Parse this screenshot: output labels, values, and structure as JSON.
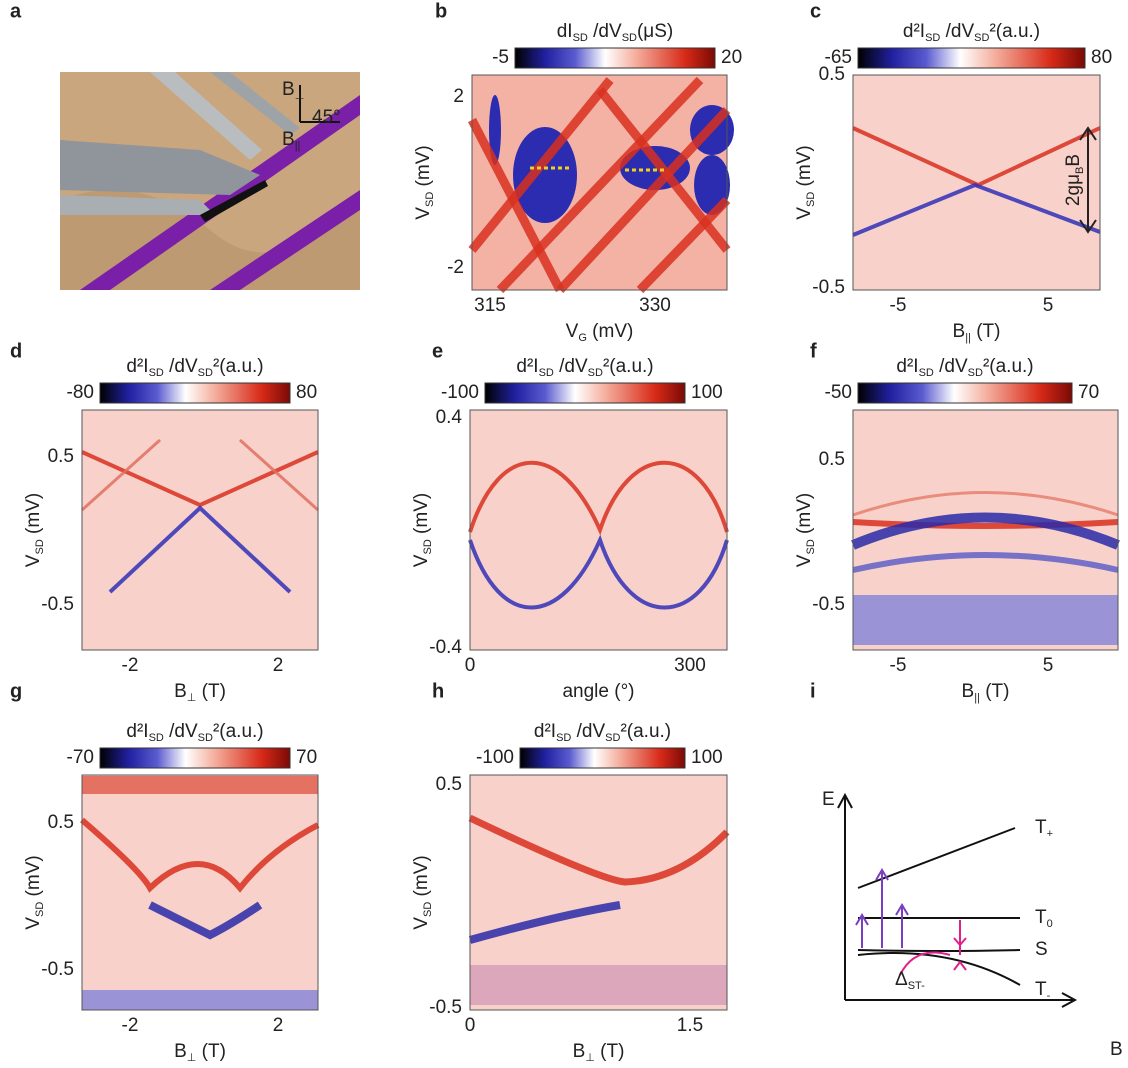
{
  "panels": [
    {
      "letter": "a",
      "labels": [
        [
          "B",
          "⊥"
        ],
        [
          "B",
          "||"
        ],
        [
          "45°"
        ]
      ]
    },
    {
      "letter": "b",
      "colorbar": {
        "title": [
          "dI",
          "SD",
          " /dV",
          "SD",
          "(μS)"
        ],
        "min": "-5",
        "max": "20"
      },
      "ylabel": [
        "V",
        "SD",
        " (mV)"
      ],
      "xlabel": [
        "V",
        "G",
        " (mV)"
      ],
      "yticks": [
        "2",
        "-2"
      ],
      "xticks": [
        "315",
        "330"
      ]
    },
    {
      "letter": "c",
      "colorbar": {
        "title": [
          "d²I",
          "SD",
          " /dV",
          "SD",
          "²(a.u.)"
        ],
        "min": "-65",
        "max": "80"
      },
      "ylabel": [
        "V",
        "SD",
        " (mV)"
      ],
      "xlabel": [
        "B",
        "||",
        " (T)"
      ],
      "yticks": [
        "0.5",
        "-0.5"
      ],
      "xticks": [
        "-5",
        "5"
      ],
      "annotation": [
        "2gμ",
        "B",
        "B"
      ]
    },
    {
      "letter": "d",
      "colorbar": {
        "title": [
          "d²I",
          "SD",
          " /dV",
          "SD",
          "²(a.u.)"
        ],
        "min": "-80",
        "max": "80"
      },
      "ylabel": [
        "V",
        "SD",
        " (mV)"
      ],
      "xlabel": [
        "B",
        "⊥",
        " (T)"
      ],
      "yticks": [
        "0.5",
        "-0.5"
      ],
      "xticks": [
        "-2",
        "2"
      ]
    },
    {
      "letter": "e",
      "colorbar": {
        "title": [
          "d²I",
          "SD",
          " /dV",
          "SD",
          "²(a.u.)"
        ],
        "min": "-100",
        "max": "100"
      },
      "ylabel": [
        "V",
        "SD",
        " (mV)"
      ],
      "xlabel": [
        "angle (°)"
      ],
      "yticks": [
        "0.4",
        "-0.4"
      ],
      "xticks": [
        "0",
        "300"
      ]
    },
    {
      "letter": "f",
      "colorbar": {
        "title": [
          "d²I",
          "SD",
          " /dV",
          "SD",
          "²(a.u.)"
        ],
        "min": "-50",
        "max": "70"
      },
      "ylabel": [
        "V",
        "SD",
        " (mV)"
      ],
      "xlabel": [
        "B",
        "||",
        " (T)"
      ],
      "yticks": [
        "0.5",
        "-0.5"
      ],
      "xticks": [
        "-5",
        "5"
      ]
    },
    {
      "letter": "g",
      "colorbar": {
        "title": [
          "d²I",
          "SD",
          " /dV",
          "SD",
          "²(a.u.)"
        ],
        "min": "-70",
        "max": "70"
      },
      "ylabel": [
        "V",
        "SD",
        " (mV)"
      ],
      "xlabel": [
        "B",
        "⊥",
        " (T)"
      ],
      "yticks": [
        "0.5",
        "-0.5"
      ],
      "xticks": [
        "-2",
        "2"
      ]
    },
    {
      "letter": "h",
      "colorbar": {
        "title": [
          "d²I",
          "SD",
          " /dV",
          "SD",
          "²(a.u.)"
        ],
        "min": "-100",
        "max": "100"
      },
      "ylabel": [
        "V",
        "SD",
        " (mV)"
      ],
      "xlabel": [
        "B",
        "⊥",
        " (T)"
      ],
      "yticks": [
        "0.5",
        "-0.5"
      ],
      "xticks": [
        "0",
        "1.5"
      ]
    },
    {
      "letter": "i",
      "labels": [
        [
          "E"
        ],
        [
          "B"
        ],
        [
          "T",
          "+"
        ],
        [
          "T",
          "0"
        ],
        [
          "S"
        ],
        [
          "T",
          "-"
        ],
        [
          "Δ",
          "ST-"
        ]
      ]
    }
  ]
}
